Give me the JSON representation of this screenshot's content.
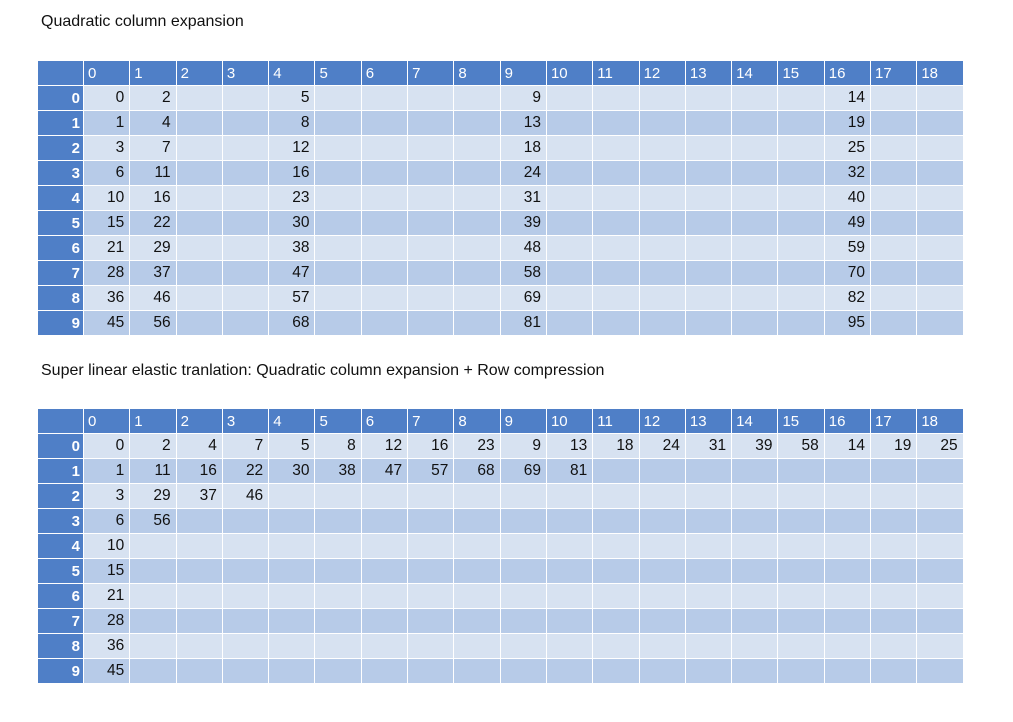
{
  "captions": {
    "top": "Quadratic column expansion",
    "bottom": "Super linear elastic tranlation: Quadratic column expansion + Row compression"
  },
  "column_headers": [
    "0",
    "1",
    "2",
    "3",
    "4",
    "5",
    "6",
    "7",
    "8",
    "9",
    "10",
    "11",
    "12",
    "13",
    "14",
    "15",
    "16",
    "17",
    "18"
  ],
  "row_headers": [
    "0",
    "1",
    "2",
    "3",
    "4",
    "5",
    "6",
    "7",
    "8",
    "9"
  ],
  "table1_rows": [
    [
      "0",
      "2",
      "",
      "",
      "5",
      "",
      "",
      "",
      "",
      "9",
      "",
      "",
      "",
      "",
      "",
      "",
      "14",
      "",
      ""
    ],
    [
      "1",
      "4",
      "",
      "",
      "8",
      "",
      "",
      "",
      "",
      "13",
      "",
      "",
      "",
      "",
      "",
      "",
      "19",
      "",
      ""
    ],
    [
      "3",
      "7",
      "",
      "",
      "12",
      "",
      "",
      "",
      "",
      "18",
      "",
      "",
      "",
      "",
      "",
      "",
      "25",
      "",
      ""
    ],
    [
      "6",
      "11",
      "",
      "",
      "16",
      "",
      "",
      "",
      "",
      "24",
      "",
      "",
      "",
      "",
      "",
      "",
      "32",
      "",
      ""
    ],
    [
      "10",
      "16",
      "",
      "",
      "23",
      "",
      "",
      "",
      "",
      "31",
      "",
      "",
      "",
      "",
      "",
      "",
      "40",
      "",
      ""
    ],
    [
      "15",
      "22",
      "",
      "",
      "30",
      "",
      "",
      "",
      "",
      "39",
      "",
      "",
      "",
      "",
      "",
      "",
      "49",
      "",
      ""
    ],
    [
      "21",
      "29",
      "",
      "",
      "38",
      "",
      "",
      "",
      "",
      "48",
      "",
      "",
      "",
      "",
      "",
      "",
      "59",
      "",
      ""
    ],
    [
      "28",
      "37",
      "",
      "",
      "47",
      "",
      "",
      "",
      "",
      "58",
      "",
      "",
      "",
      "",
      "",
      "",
      "70",
      "",
      ""
    ],
    [
      "36",
      "46",
      "",
      "",
      "57",
      "",
      "",
      "",
      "",
      "69",
      "",
      "",
      "",
      "",
      "",
      "",
      "82",
      "",
      ""
    ],
    [
      "45",
      "56",
      "",
      "",
      "68",
      "",
      "",
      "",
      "",
      "81",
      "",
      "",
      "",
      "",
      "",
      "",
      "95",
      "",
      ""
    ]
  ],
  "table2_rows": [
    [
      "0",
      "2",
      "4",
      "7",
      "5",
      "8",
      "12",
      "16",
      "23",
      "9",
      "13",
      "18",
      "24",
      "31",
      "39",
      "58",
      "14",
      "19",
      "25"
    ],
    [
      "1",
      "11",
      "16",
      "22",
      "30",
      "38",
      "47",
      "57",
      "68",
      "69",
      "81",
      "",
      "",
      "",
      "",
      "",
      "",
      "",
      ""
    ],
    [
      "3",
      "29",
      "37",
      "46",
      "",
      "",
      "",
      "",
      "",
      "",
      "",
      "",
      "",
      "",
      "",
      "",
      "",
      "",
      ""
    ],
    [
      "6",
      "56",
      "",
      "",
      "",
      "",
      "",
      "",
      "",
      "",
      "",
      "",
      "",
      "",
      "",
      "",
      "",
      "",
      ""
    ],
    [
      "10",
      "",
      "",
      "",
      "",
      "",
      "",
      "",
      "",
      "",
      "",
      "",
      "",
      "",
      "",
      "",
      "",
      "",
      ""
    ],
    [
      "15",
      "",
      "",
      "",
      "",
      "",
      "",
      "",
      "",
      "",
      "",
      "",
      "",
      "",
      "",
      "",
      "",
      "",
      ""
    ],
    [
      "21",
      "",
      "",
      "",
      "",
      "",
      "",
      "",
      "",
      "",
      "",
      "",
      "",
      "",
      "",
      "",
      "",
      "",
      ""
    ],
    [
      "28",
      "",
      "",
      "",
      "",
      "",
      "",
      "",
      "",
      "",
      "",
      "",
      "",
      "",
      "",
      "",
      "",
      "",
      ""
    ],
    [
      "36",
      "",
      "",
      "",
      "",
      "",
      "",
      "",
      "",
      "",
      "",
      "",
      "",
      "",
      "",
      "",
      "",
      "",
      ""
    ],
    [
      "45",
      "",
      "",
      "",
      "",
      "",
      "",
      "",
      "",
      "",
      "",
      "",
      "",
      "",
      "",
      "",
      "",
      "",
      ""
    ]
  ]
}
